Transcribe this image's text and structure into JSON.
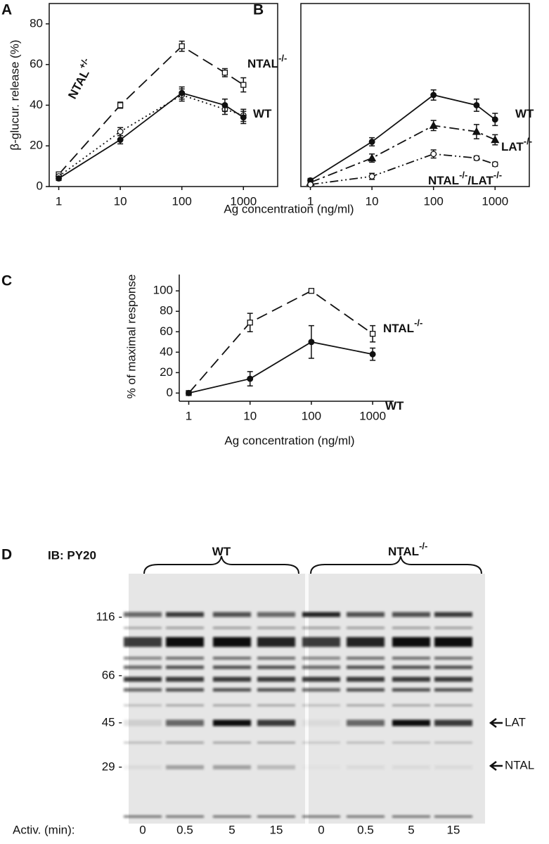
{
  "chart_data": [
    {
      "type": "line",
      "title": "A",
      "ylabel": "β-glucur. release (%)",
      "xlabel": "Ag concentration (ng/ml)",
      "x": [
        1,
        10,
        100,
        500,
        1000
      ],
      "xscale": "log",
      "xlim": [
        0.7,
        3600
      ],
      "xticks": [
        1,
        10,
        100,
        1000
      ],
      "ylim": [
        0,
        90
      ],
      "yticks": [
        0,
        20,
        40,
        60,
        80
      ],
      "box": true,
      "series": [
        {
          "label": [
            "NTAL",
            "-/-"
          ],
          "color": "#111",
          "dash": "16 8",
          "marker": "square-open",
          "values": [
            6,
            40,
            69,
            56,
            50
          ],
          "errors": [
            1,
            1.5,
            2.5,
            2,
            3.5
          ]
        },
        {
          "label": [
            "NTAL",
            "+/-"
          ],
          "color": "#111",
          "dash": "2 4",
          "marker": "circle-open",
          "values": [
            5,
            27,
            45,
            38,
            35
          ],
          "errors": [
            1,
            2,
            3,
            2.5,
            3
          ]
        },
        {
          "label": [
            "WT"
          ],
          "color": "#111",
          "dash": "",
          "marker": "circle",
          "values": [
            4,
            23,
            46,
            40,
            34
          ],
          "errors": [
            1,
            2,
            3,
            3,
            3
          ]
        }
      ]
    },
    {
      "type": "line",
      "title": "B",
      "x": [
        1,
        10,
        100,
        500,
        1000
      ],
      "xscale": "log",
      "xlim": [
        0.7,
        3600
      ],
      "xticks": [
        1,
        10,
        100,
        1000
      ],
      "ylim": [
        0,
        90
      ],
      "box": true,
      "series": [
        {
          "label": [
            "WT"
          ],
          "color": "#111",
          "dash": "",
          "marker": "circle",
          "values": [
            3,
            22,
            45,
            40,
            33
          ],
          "errors": [
            1,
            2,
            2.5,
            3,
            3
          ]
        },
        {
          "label": [
            "LAT",
            "-/-"
          ],
          "color": "#111",
          "dash": "14 5 3 5",
          "marker": "triangle",
          "values": [
            2,
            14,
            30,
            27,
            23
          ],
          "errors": [
            1,
            2,
            2.5,
            3.5,
            2.5
          ]
        },
        {
          "label": [
            "NTAL",
            "-/-",
            "/LAT",
            "-/-"
          ],
          "color": "#111",
          "dash": "12 4 2 4 2 4",
          "marker": "circle-open",
          "values": [
            1,
            5,
            16,
            14,
            11
          ],
          "errors": [
            0.5,
            1.5,
            2,
            1,
            1
          ]
        }
      ]
    },
    {
      "type": "line",
      "title": "C",
      "ylabel": "% of maximal response",
      "xlabel": "Ag concentration (ng/ml)",
      "x": [
        1,
        10,
        100,
        1000
      ],
      "xscale": "log",
      "xlim": [
        0.7,
        2200
      ],
      "xticks": [
        1,
        10,
        100,
        1000
      ],
      "ylim": [
        -8,
        116
      ],
      "yticks": [
        0,
        20,
        40,
        60,
        80,
        100
      ],
      "box": false,
      "series": [
        {
          "label": [
            "NTAL",
            "-/-"
          ],
          "color": "#111",
          "dash": "16 8",
          "marker": "square-open",
          "values": [
            0,
            69,
            100,
            58
          ],
          "errors": [
            0,
            9,
            0,
            8
          ]
        },
        {
          "label": [
            "WT"
          ],
          "color": "#111",
          "dash": "",
          "marker": "circle",
          "values": [
            0,
            14,
            50,
            38
          ],
          "errors": [
            0,
            7,
            16,
            6
          ]
        }
      ]
    }
  ],
  "blot": {
    "title": "D",
    "antibody": "IB: PY20",
    "groups": [
      [
        "WT"
      ],
      [
        "NTAL",
        "-/-"
      ]
    ],
    "markers": [
      "116 -",
      "66 -",
      "45 -",
      "29 -"
    ],
    "arrows": [
      "LAT",
      "NTAL"
    ],
    "activation_label": "Activ. (min):",
    "lanes": [
      "0",
      "0.5",
      "5",
      "15",
      "0",
      "0.5",
      "5",
      "15"
    ]
  }
}
